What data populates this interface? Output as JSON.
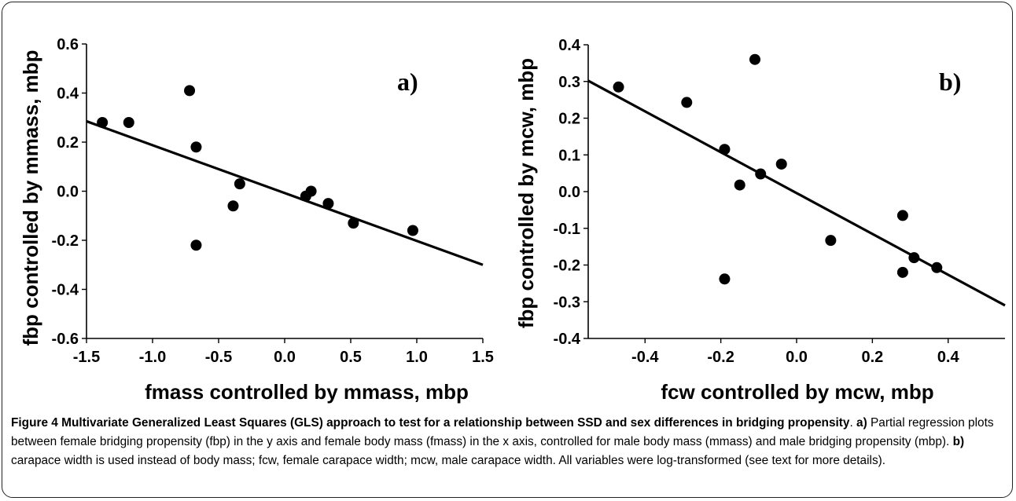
{
  "chart_data": [
    {
      "type": "scatter",
      "panel_label": "a)",
      "xlabel": "fmass controlled by mmass, mbp",
      "ylabel": "fbp controlled by mmass, mbp",
      "xlim": [
        -1.5,
        1.5
      ],
      "ylim": [
        -0.6,
        0.6
      ],
      "xticks": [
        "-1.5",
        "-1.0",
        "-0.5",
        "0.0",
        "0.5",
        "1.0",
        "1.5"
      ],
      "yticks": [
        "-0.6",
        "-0.4",
        "-0.2",
        "0.0",
        "0.2",
        "0.4",
        "0.6"
      ],
      "points": [
        {
          "x": -1.38,
          "y": 0.28
        },
        {
          "x": -1.18,
          "y": 0.28
        },
        {
          "x": -0.72,
          "y": 0.41
        },
        {
          "x": -0.67,
          "y": 0.18
        },
        {
          "x": -0.67,
          "y": -0.22
        },
        {
          "x": -0.39,
          "y": -0.06
        },
        {
          "x": -0.34,
          "y": 0.03
        },
        {
          "x": 0.16,
          "y": -0.02
        },
        {
          "x": 0.2,
          "y": 0.0
        },
        {
          "x": 0.33,
          "y": -0.05
        },
        {
          "x": 0.52,
          "y": -0.13
        },
        {
          "x": 0.97,
          "y": -0.16
        }
      ],
      "fit_line": {
        "x": [
          -1.5,
          1.5
        ],
        "y": [
          0.285,
          -0.3
        ]
      }
    },
    {
      "type": "scatter",
      "panel_label": "b)",
      "xlabel": "fcw controlled by mcw, mbp",
      "ylabel": "fbp controlled by mcw, mbp",
      "xlim": [
        -0.55,
        0.55
      ],
      "ylim": [
        -0.4,
        0.4
      ],
      "xticks": [
        "-0.4",
        "-0.2",
        "0.0",
        "0.2",
        "0.4"
      ],
      "xtick_values": [
        -0.4,
        -0.2,
        0.0,
        0.2,
        0.4
      ],
      "yticks": [
        "-0.4",
        "-0.3",
        "-0.2",
        "-0.1",
        "0.0",
        "0.1",
        "0.2",
        "0.3",
        "0.4"
      ],
      "points": [
        {
          "x": -0.47,
          "y": 0.285
        },
        {
          "x": -0.29,
          "y": 0.243
        },
        {
          "x": -0.11,
          "y": 0.36
        },
        {
          "x": -0.19,
          "y": 0.115
        },
        {
          "x": -0.15,
          "y": 0.018
        },
        {
          "x": -0.095,
          "y": 0.048
        },
        {
          "x": -0.04,
          "y": 0.075
        },
        {
          "x": -0.19,
          "y": -0.238
        },
        {
          "x": 0.09,
          "y": -0.133
        },
        {
          "x": 0.28,
          "y": -0.065
        },
        {
          "x": 0.28,
          "y": -0.22
        },
        {
          "x": 0.31,
          "y": -0.18
        },
        {
          "x": 0.37,
          "y": -0.207
        }
      ],
      "fit_line": {
        "x": [
          -0.55,
          0.55
        ],
        "y": [
          0.302,
          -0.31
        ]
      }
    }
  ],
  "caption": {
    "title": "Figure 4 Multivariate Generalized Least Squares (GLS) approach to test for a relationship between SSD and sex differences in bridging propensity",
    "a_label": "a)",
    "a_text": " Partial regression plots between female bridging propensity (fbp) in the y axis and female body mass (fmass) in the x axis, controlled for male body mass (mmass) and male bridging propensity (mbp). ",
    "b_label": "b)",
    "b_text": " carapace width is used instead of body mass; fcw, female carapace width; mcw, male carapace width. All variables were log-transformed (see text for more details)."
  }
}
